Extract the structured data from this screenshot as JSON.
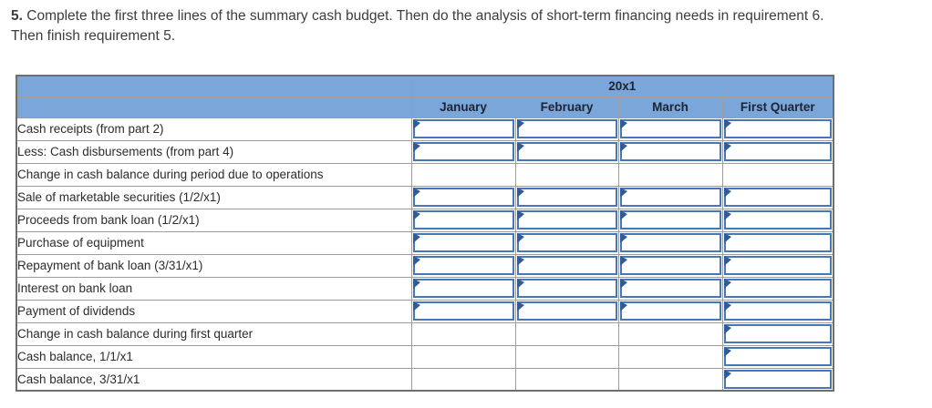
{
  "instruction": {
    "number": "5.",
    "line1": "Complete the first three lines of the summary cash budget. Then do the analysis of short-term financing needs in requirement 6.",
    "line2": "Then finish requirement 5."
  },
  "table": {
    "year_header": "20x1",
    "columns": [
      "January",
      "February",
      "March",
      "First Quarter"
    ],
    "rows": [
      {
        "label": "Cash receipts (from part 2)",
        "input_columns": [
          0,
          1,
          2,
          3
        ],
        "underline_columns": []
      },
      {
        "label": "Less: Cash disbursements (from part 4)",
        "input_columns": [
          0,
          1,
          2,
          3
        ],
        "underline_columns": [
          0,
          1,
          2,
          3
        ]
      },
      {
        "label": "Change in cash balance during period due to operations",
        "input_columns": [],
        "underline_columns": []
      },
      {
        "label": "Sale of marketable securities (1/2/x1)",
        "input_columns": [
          0,
          1,
          2,
          3
        ],
        "underline_columns": []
      },
      {
        "label": "Proceeds from bank loan (1/2/x1)",
        "input_columns": [
          0,
          1,
          2,
          3
        ],
        "underline_columns": []
      },
      {
        "label": "Purchase of equipment",
        "input_columns": [
          0,
          1,
          2,
          3
        ],
        "underline_columns": []
      },
      {
        "label": "Repayment of bank loan (3/31/x1)",
        "input_columns": [
          0,
          1,
          2,
          3
        ],
        "underline_columns": []
      },
      {
        "label": "Interest on bank loan",
        "input_columns": [
          0,
          1,
          2,
          3
        ],
        "underline_columns": []
      },
      {
        "label": "Payment of dividends",
        "input_columns": [
          0,
          1,
          2,
          3
        ],
        "underline_columns": [
          3
        ]
      },
      {
        "label": "Change in cash balance during first quarter",
        "input_columns": [
          3
        ],
        "underline_columns": []
      },
      {
        "label": "Cash balance, 1/1/x1",
        "input_columns": [
          3
        ],
        "underline_columns": [
          3
        ]
      },
      {
        "label": "Cash balance, 3/31/x1",
        "input_columns": [
          3
        ],
        "underline_columns": []
      }
    ],
    "cell_values": {
      "note": "all answer boxes are empty"
    }
  },
  "colors": {
    "header_blue": "#7ba6da",
    "header_text": "#1c2433",
    "grid_gray": "#9d9d9d",
    "outer_gray": "#6f6f6f",
    "input_border_blue": "#4678b9",
    "marker_blue": "#2f5b9d",
    "total_line_dark": "#0e1626",
    "label_text": "#2c2c2c",
    "instruction_text": "#3d3d3d"
  }
}
